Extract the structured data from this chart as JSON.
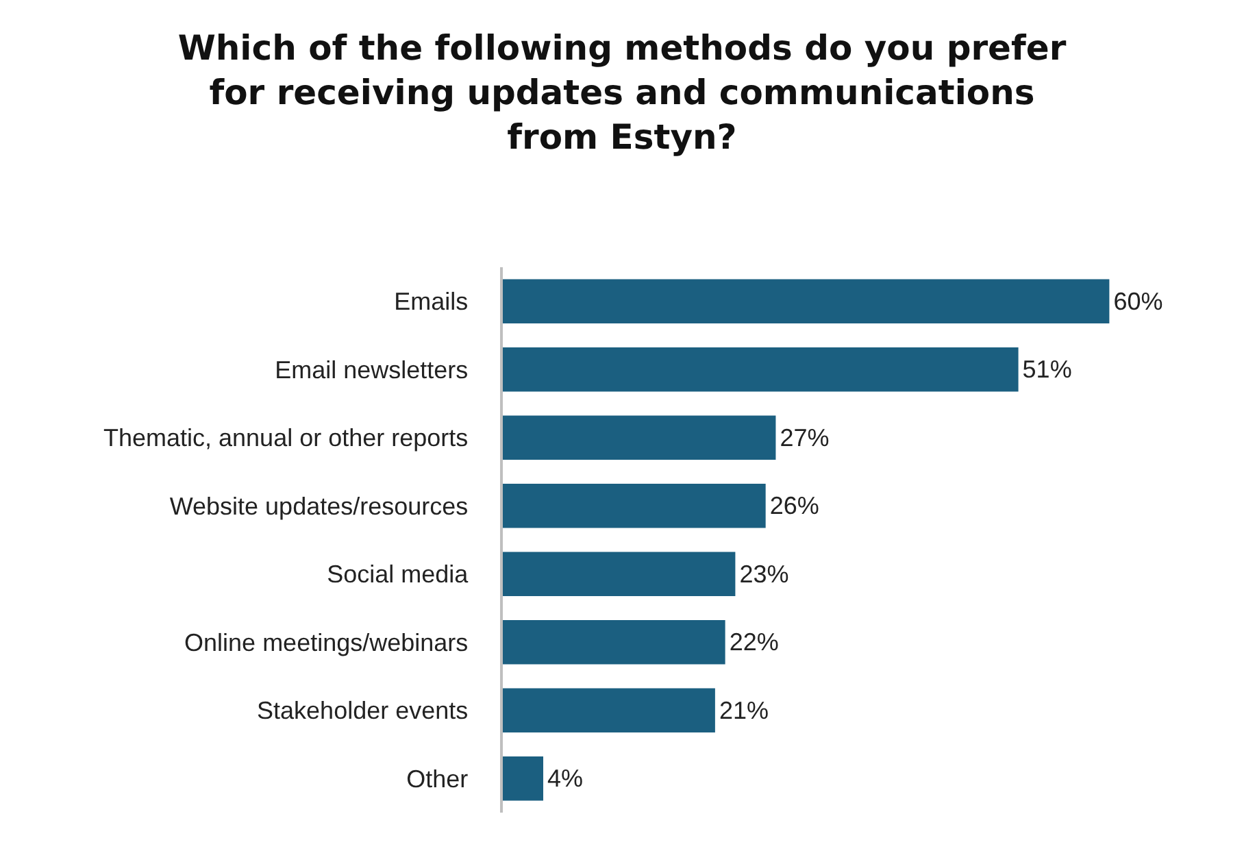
{
  "chart_data": {
    "type": "bar",
    "orientation": "horizontal",
    "title": "Which of the following methods do you prefer for receiving updates and communications from Estyn?",
    "categories": [
      "Emails",
      "Email newsletters",
      "Thematic, annual or other reports",
      "Website updates/resources",
      "Social media",
      "Online meetings/webinars",
      "Stakeholder events",
      "Other"
    ],
    "values": [
      60,
      51,
      27,
      26,
      23,
      22,
      21,
      4
    ],
    "value_labels": [
      "60%",
      "51%",
      "27%",
      "26%",
      "23%",
      "22%",
      "21%",
      "4%"
    ],
    "color": "#1b5f80"
  }
}
